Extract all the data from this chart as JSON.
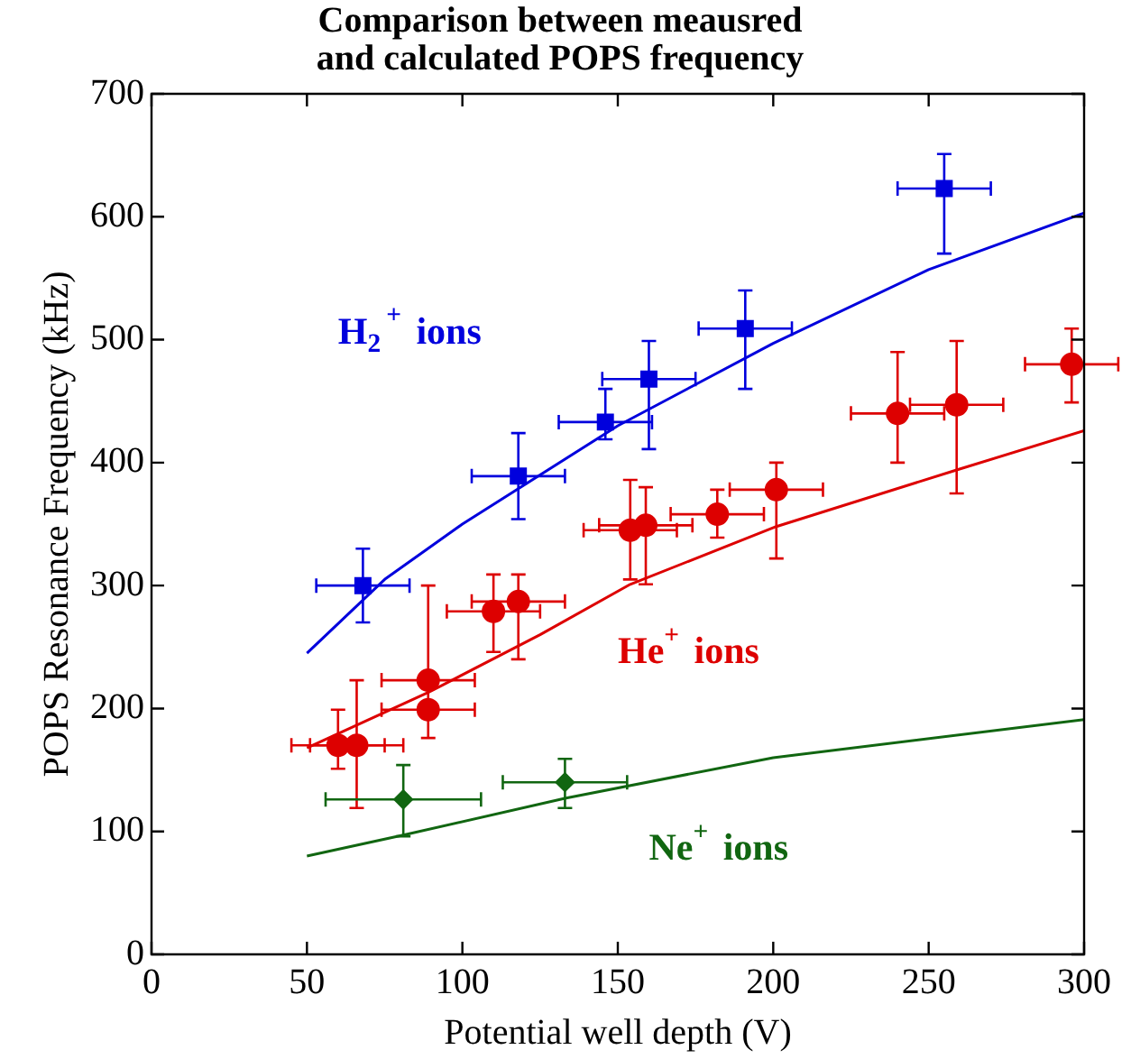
{
  "chart_data": {
    "type": "scatter",
    "title": "Comparison between meausred\nand calculated POPS frequency",
    "xlabel": "Potential well depth (V)",
    "ylabel": "POPS Resonance Frequency (kHz)",
    "xlim": [
      0,
      300
    ],
    "xticks": [
      0,
      50,
      100,
      150,
      200,
      250,
      300
    ],
    "ylim": [
      0,
      700
    ],
    "yticks": [
      0,
      100,
      200,
      300,
      400,
      500,
      600,
      700
    ],
    "grid": false,
    "legend": false,
    "series": [
      {
        "name": "H$_{2}$$^{+}$ ions",
        "color": "#0000dd",
        "marker": "square",
        "x": [
          68,
          118,
          146,
          160,
          191,
          255
        ],
        "values": [
          300,
          389,
          433,
          468,
          509,
          623
        ],
        "errors": [
          30,
          35,
          [
            419,
            460
          ],
          [
            411,
            499
          ],
          [
            460,
            540
          ],
          [
            570,
            651
          ]
        ],
        "xerrors": [
          15,
          15,
          15,
          15,
          15,
          15
        ]
      },
      {
        "name": "He$^{+}$ ions",
        "color": "#dd0000",
        "marker": "circle",
        "x": [
          60,
          66,
          89,
          89,
          110,
          118,
          154,
          159,
          182,
          201,
          240,
          259,
          296
        ],
        "values": [
          170,
          170,
          199,
          223,
          279,
          287,
          345,
          349,
          358,
          378,
          440,
          447,
          480
        ],
        "errors": [
          [
            151,
            199
          ],
          [
            119,
            223
          ],
          23,
          [
            223,
            300
          ],
          [
            246,
            309
          ],
          [
            240,
            309
          ],
          [
            305,
            386
          ],
          [
            301,
            380
          ],
          [
            339,
            378
          ],
          [
            322,
            400
          ],
          [
            400,
            490
          ],
          [
            375,
            499
          ],
          [
            449,
            509
          ]
        ],
        "xerrors": [
          15,
          15,
          15,
          15,
          15,
          15,
          15,
          15,
          15,
          15,
          15,
          15,
          15
        ]
      },
      {
        "name": "Ne$^{+}$ ions",
        "color": "#116611",
        "marker": "diamond",
        "x": [
          81,
          133
        ],
        "values": [
          126,
          140
        ],
        "errors": [
          [
            96,
            154
          ],
          [
            119,
            159
          ]
        ],
        "xerrors": [
          25,
          20
        ]
      },
      {
        "type": "line",
        "color": "#0000dd",
        "x": [
          50,
          75,
          100,
          150,
          200,
          250,
          300
        ],
        "values": [
          245,
          305,
          350,
          430,
          497,
          557,
          603
        ]
      },
      {
        "type": "line",
        "color": "#dd0000",
        "x": [
          50,
          89,
          125,
          154,
          201,
          259,
          300
        ],
        "values": [
          168,
          213,
          260,
          301,
          348,
          394,
          426
        ]
      },
      {
        "type": "line",
        "color": "#116611",
        "x": [
          50,
          81,
          133,
          200,
          300
        ],
        "values": [
          80,
          97,
          127,
          160,
          191
        ]
      }
    ]
  }
}
